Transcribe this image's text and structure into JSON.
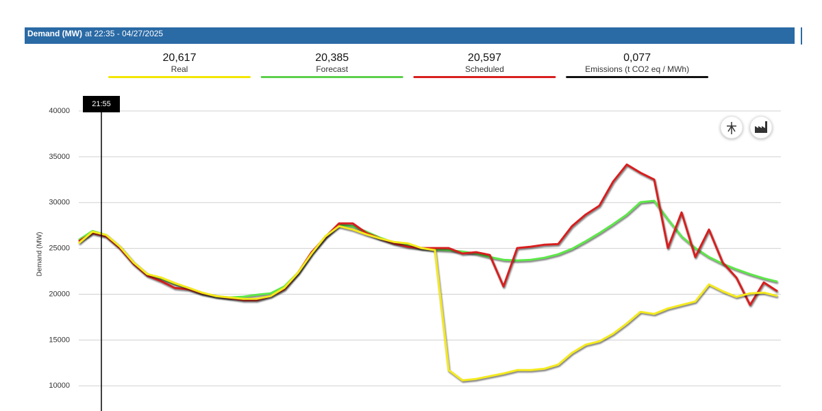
{
  "header": {
    "title": "Demand (MW)",
    "subtitle": "at 22:35 - 04/27/2025"
  },
  "summary": [
    {
      "value": "20,617",
      "label": "Real",
      "color": "#f2e600"
    },
    {
      "value": "20,385",
      "label": "Forecast",
      "color": "#5ccf4a"
    },
    {
      "value": "20,597",
      "label": "Scheduled",
      "color": "#d81e1e"
    },
    {
      "value": "0,077",
      "label": "Emissions (t CO2 eq / MWh)",
      "color": "#111111"
    }
  ],
  "chart_data": {
    "type": "line",
    "ylabel": "Demand (MW)",
    "cursor_label": "21:55",
    "ylim": [
      8000,
      41500
    ],
    "yticks": [
      10000,
      15000,
      20000,
      25000,
      30000,
      35000,
      40000
    ],
    "grid": true,
    "categories": [
      null,
      null,
      null,
      null,
      null,
      null,
      null,
      null,
      null,
      null,
      null,
      null,
      null,
      null,
      null,
      null,
      null,
      null,
      null,
      null,
      null,
      null,
      null,
      null,
      null,
      null,
      null,
      null,
      null,
      null,
      null,
      null,
      null,
      null,
      null,
      null,
      null,
      null,
      null,
      null,
      null,
      null,
      null,
      null,
      null,
      null,
      null,
      null,
      null,
      null,
      null,
      null
    ],
    "series": [
      {
        "name": "Forecast",
        "color": "#5ee84a",
        "values": [
          25930,
          26900,
          26460,
          25190,
          23470,
          22190,
          21740,
          21150,
          20700,
          20100,
          19800,
          19650,
          19730,
          19950,
          20100,
          20850,
          22340,
          24440,
          26310,
          27580,
          27430,
          26830,
          26160,
          25630,
          25340,
          25040,
          24880,
          24810,
          24660,
          24440,
          24060,
          23760,
          23690,
          23760,
          23990,
          24360,
          24960,
          25780,
          26680,
          27650,
          28700,
          30050,
          30200,
          28180,
          26310,
          25040,
          24060,
          23320,
          22720,
          22190,
          21740,
          21370
        ]
      },
      {
        "name": "Scheduled",
        "color": "#d81e1e",
        "values": [
          25780,
          26680,
          26310,
          25040,
          23320,
          22040,
          21440,
          20700,
          20550,
          20100,
          19800,
          19580,
          19350,
          19350,
          19800,
          20550,
          22340,
          24590,
          26240,
          27730,
          27730,
          26680,
          26080,
          25560,
          25190,
          25040,
          25040,
          25040,
          24440,
          24590,
          24290,
          20850,
          25040,
          25190,
          25410,
          25480,
          27430,
          28700,
          29670,
          32290,
          34160,
          33260,
          32520,
          25040,
          28930,
          24060,
          27060,
          23460,
          21820,
          18830,
          21290,
          20320
        ]
      },
      {
        "name": "Real",
        "color": "#f5ea1c",
        "values": [
          25560,
          26830,
          26460,
          25190,
          23470,
          22190,
          21820,
          21220,
          20700,
          20170,
          19800,
          19650,
          19500,
          19500,
          19800,
          20700,
          22340,
          24440,
          26310,
          27430,
          27060,
          26530,
          26080,
          25710,
          25560,
          25040,
          24810,
          11720,
          10600,
          10750,
          11050,
          11350,
          11720,
          11720,
          11870,
          12320,
          13590,
          14490,
          14860,
          15690,
          16810,
          18080,
          17850,
          18450,
          18830,
          19200,
          21070,
          20320,
          19720,
          20100,
          20170,
          19800
        ]
      }
    ]
  }
}
